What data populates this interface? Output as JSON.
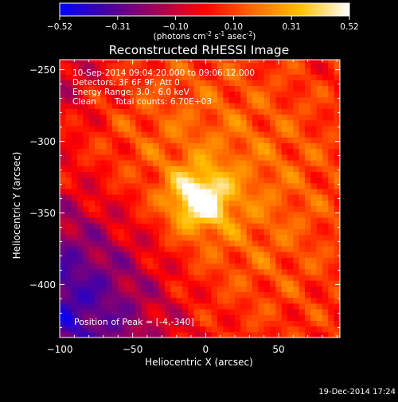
{
  "colorbar": {
    "ticks": [
      "-0.52",
      "-0.31",
      "-0.10",
      "0.10",
      "0.31",
      "0.52"
    ],
    "units_prefix": "(photons cm",
    "units_exp1": "-2",
    "units_mid": " s",
    "units_exp2": "-1",
    "units_mid2": " asec",
    "units_exp3": "-2",
    "units_suffix": ")"
  },
  "footer": {
    "timestamp": "19-Dec-2014 17:24"
  },
  "chart_data": {
    "type": "heatmap",
    "title": "Reconstructed RHESSI Image",
    "xlabel": "Heliocentric X (arcsec)",
    "ylabel": "Heliocentric Y (arcsec)",
    "xlim": [
      -100,
      92
    ],
    "ylim": [
      -437,
      -243
    ],
    "x_ticks": [
      -100,
      -50,
      0,
      50
    ],
    "y_ticks": [
      -250,
      -300,
      -350,
      -400
    ],
    "x_tick_labels": [
      "−100",
      "−50",
      "0",
      "50"
    ],
    "y_tick_labels": [
      "−250",
      "−300",
      "−350",
      "−400"
    ],
    "value_range": [
      -0.52,
      0.52
    ],
    "peak": {
      "x": -4,
      "y": -340
    },
    "annotations": {
      "time": "10-Sep-2014 09:04:20.000 to 09:06:12.000",
      "detectors": "Detectors: 3F 6F 9F, Att 0",
      "energy": "Energy Range: 3.0 - 6.0 keV",
      "method": "Clean",
      "counts": "Total counts: 6.70E+03",
      "peak_label": "Position of Peak = [-4,-340]"
    },
    "colors": {
      "colormap": [
        "#0000ff",
        "#4b00a0",
        "#a0005a",
        "#ff0000",
        "#ff6a00",
        "#ffc000",
        "#ffffff"
      ]
    }
  }
}
